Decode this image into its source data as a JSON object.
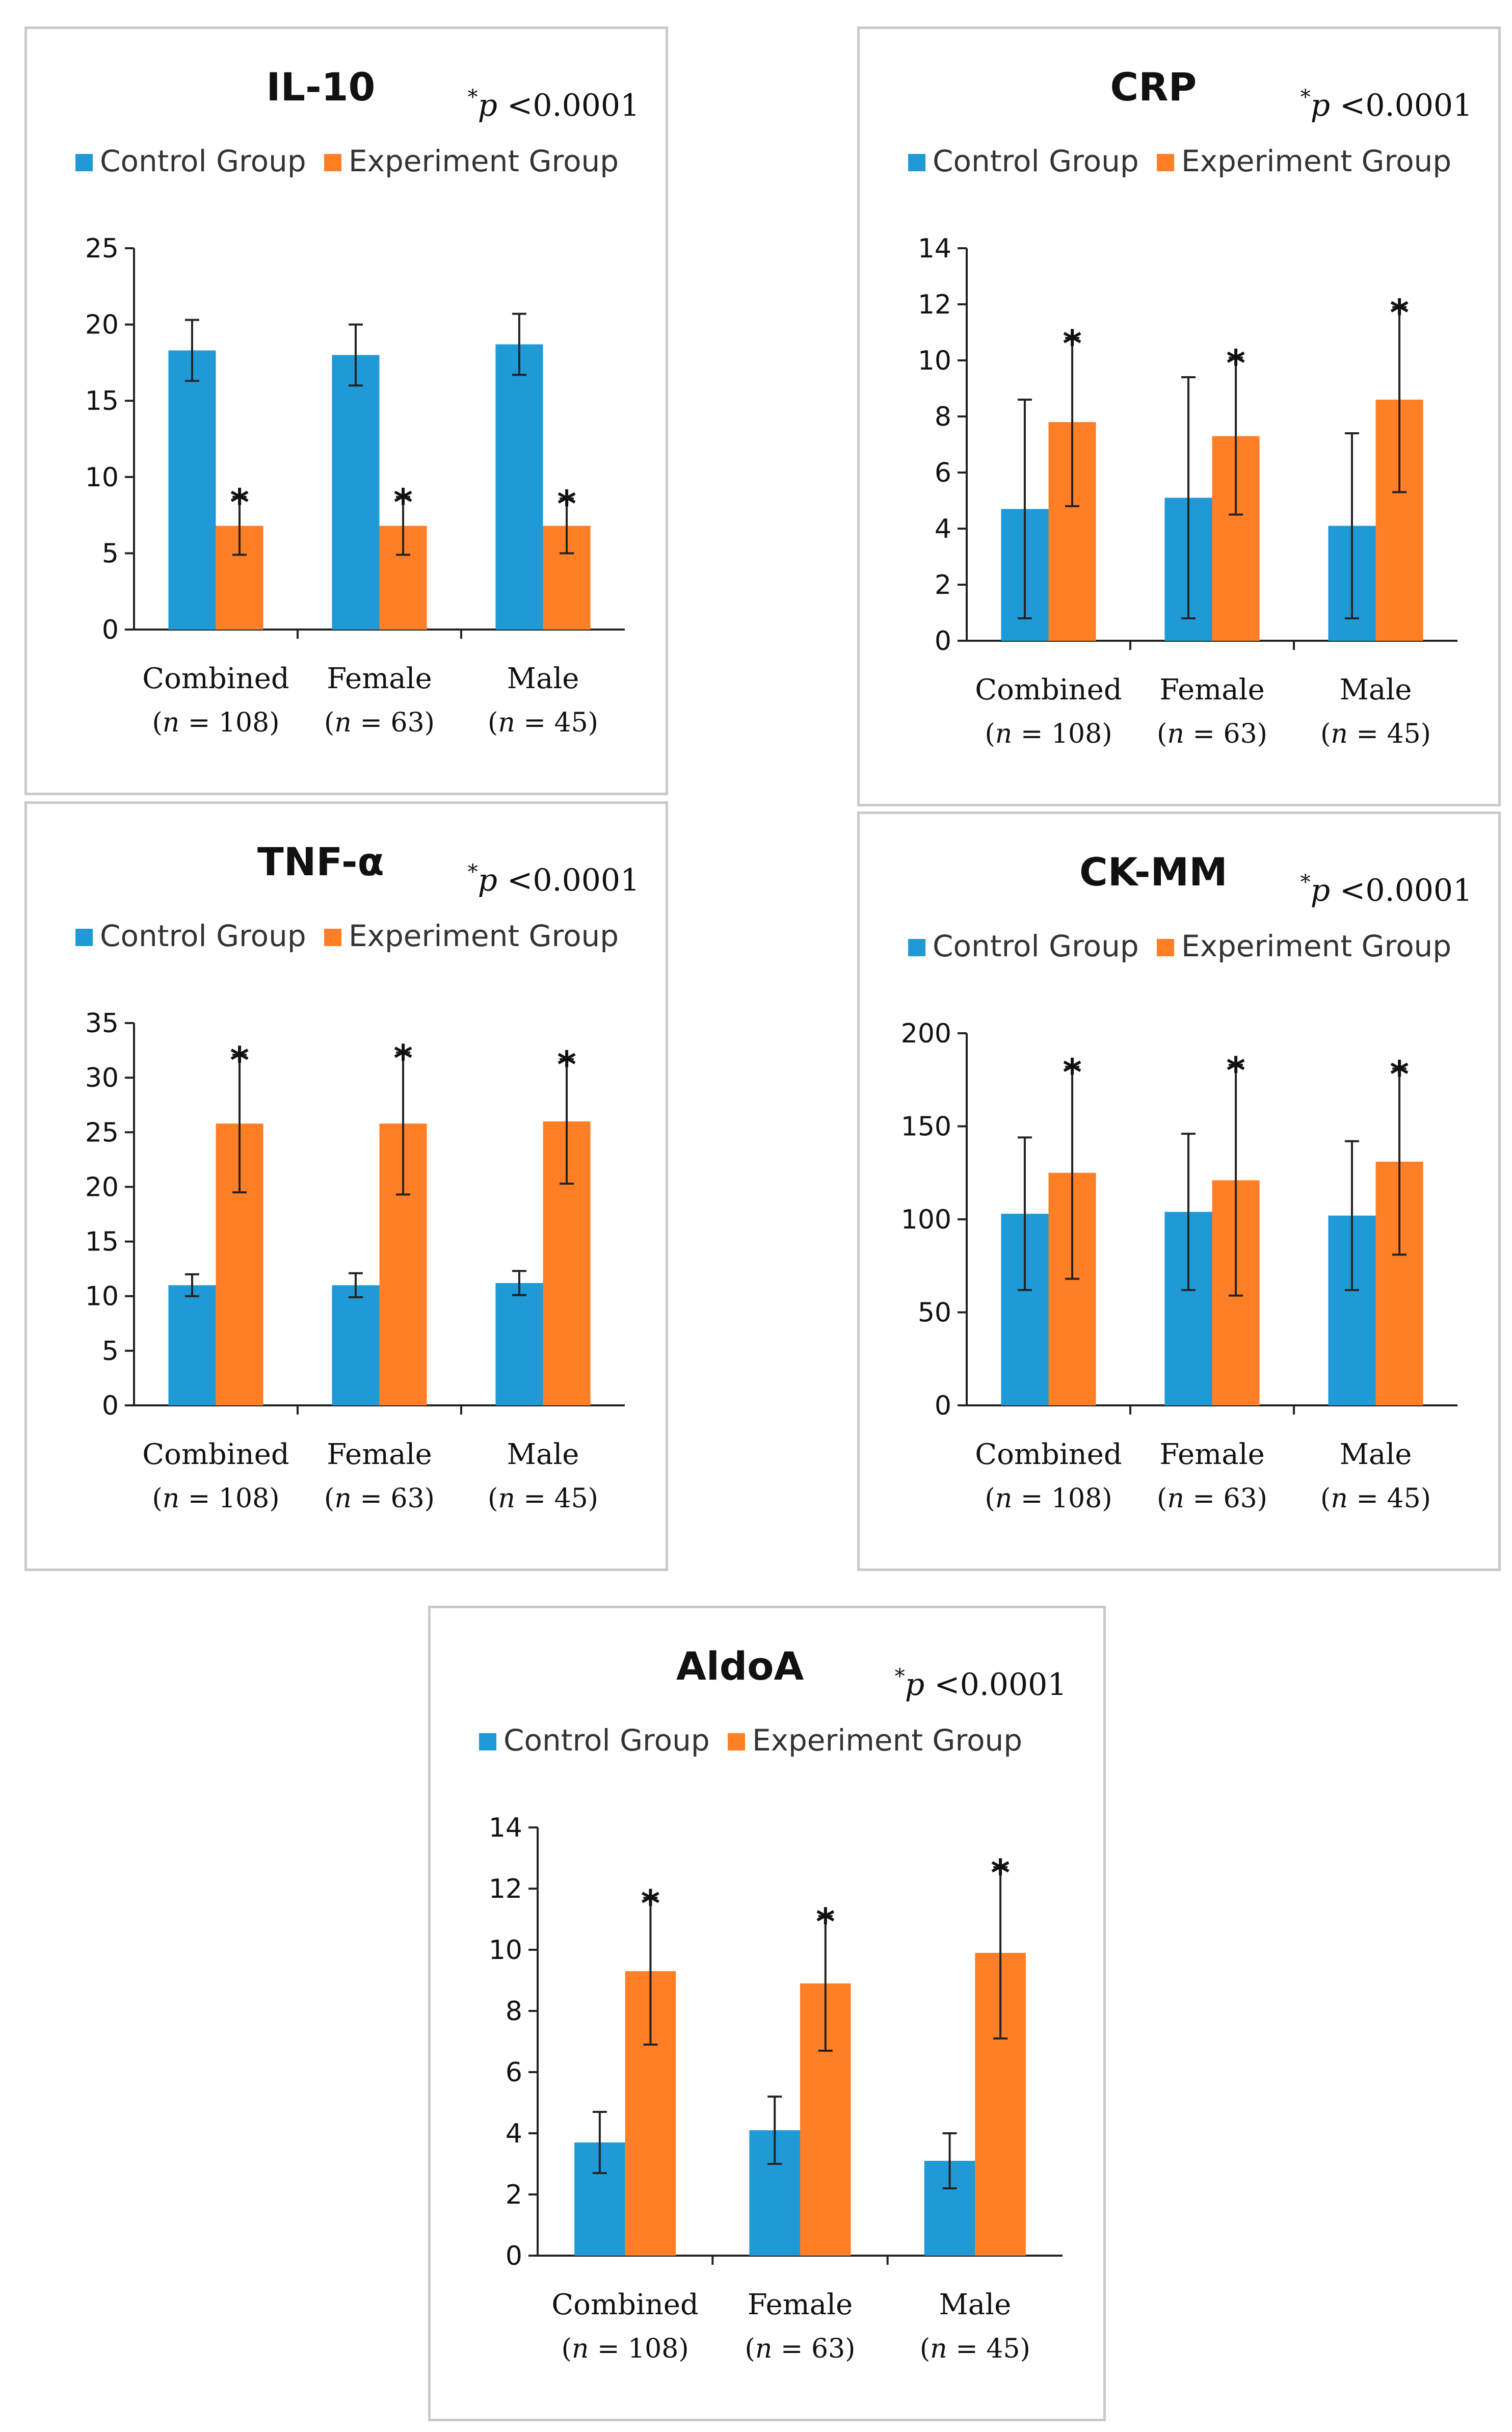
{
  "chart_data": [
    {
      "type": "bar",
      "title": "IL-10",
      "annotation": {
        "star": "*",
        "var": "p",
        "text": " <0.0001"
      },
      "categories": [
        "Combined",
        "Female",
        "Male"
      ],
      "category_n": [
        "(n = 108)",
        "(n = 63)",
        "(n = 45)"
      ],
      "n_values": [
        "108",
        "63",
        "45"
      ],
      "ylim": [
        0,
        25
      ],
      "yticks": [
        0,
        5,
        10,
        15,
        20,
        25
      ],
      "series": [
        {
          "name": "Control Group",
          "color": "#1f9ad6",
          "values": [
            18.3,
            18.0,
            18.7
          ],
          "errors": [
            2.0,
            2.0,
            2.0
          ]
        },
        {
          "name": "Experiment Group",
          "color": "#ff7f27",
          "values": [
            6.8,
            6.8,
            6.8
          ],
          "errors": [
            1.9,
            1.9,
            1.8
          ]
        }
      ],
      "significance": "*"
    },
    {
      "type": "bar",
      "title": "CRP",
      "annotation": {
        "star": "*",
        "var": "p",
        "text": " <0.0001"
      },
      "categories": [
        "Combined",
        "Female",
        "Male"
      ],
      "category_n": [
        "(n = 108)",
        "(n = 63)",
        "(n = 45)"
      ],
      "n_values": [
        "108",
        "63",
        "45"
      ],
      "ylim": [
        0,
        14
      ],
      "yticks": [
        0,
        2,
        4,
        6,
        8,
        10,
        12,
        14
      ],
      "series": [
        {
          "name": "Control Group",
          "color": "#1f9ad6",
          "values": [
            4.7,
            5.1,
            4.1
          ],
          "errors": [
            3.9,
            4.3,
            3.3
          ]
        },
        {
          "name": "Experiment Group",
          "color": "#ff7f27",
          "values": [
            7.8,
            7.3,
            8.6
          ],
          "errors": [
            3.0,
            2.8,
            3.3
          ]
        }
      ],
      "significance": "*"
    },
    {
      "type": "bar",
      "title": "TNF-α",
      "annotation": {
        "star": "*",
        "var": "p",
        "text": " <0.0001"
      },
      "categories": [
        "Combined",
        "Female",
        "Male"
      ],
      "category_n": [
        "(n = 108)",
        "(n = 63)",
        "(n = 45)"
      ],
      "n_values": [
        "108",
        "63",
        "45"
      ],
      "ylim": [
        0,
        35
      ],
      "yticks": [
        0,
        5,
        10,
        15,
        20,
        25,
        30,
        35
      ],
      "series": [
        {
          "name": "Control Group",
          "color": "#1f9ad6",
          "values": [
            11.0,
            11.0,
            11.2
          ],
          "errors": [
            1.0,
            1.1,
            1.1
          ]
        },
        {
          "name": "Experiment Group",
          "color": "#ff7f27",
          "values": [
            25.8,
            25.8,
            26.0
          ],
          "errors": [
            6.3,
            6.5,
            5.7
          ]
        }
      ],
      "significance": "*"
    },
    {
      "type": "bar",
      "title": "CK-MM",
      "annotation": {
        "star": "*",
        "var": "p",
        "text": " <0.0001"
      },
      "categories": [
        "Combined",
        "Female",
        "Male"
      ],
      "category_n": [
        "(n = 108)",
        "(n = 63)",
        "(n = 45)"
      ],
      "n_values": [
        "108",
        "63",
        "45"
      ],
      "ylim": [
        0,
        200
      ],
      "yticks": [
        0,
        50,
        100,
        150,
        200
      ],
      "series": [
        {
          "name": "Control Group",
          "color": "#1f9ad6",
          "values": [
            103,
            104,
            102
          ],
          "errors": [
            41,
            42,
            40
          ]
        },
        {
          "name": "Experiment Group",
          "color": "#ff7f27",
          "values": [
            125,
            121,
            131
          ],
          "errors": [
            57,
            62,
            50
          ]
        }
      ],
      "significance": "*"
    },
    {
      "type": "bar",
      "title": "AldoA",
      "annotation": {
        "star": "*",
        "var": "p",
        "text": " <0.0001"
      },
      "categories": [
        "Combined",
        "Female",
        "Male"
      ],
      "category_n": [
        "(n = 108)",
        "(n = 63)",
        "(n = 45)"
      ],
      "n_values": [
        "108",
        "63",
        "45"
      ],
      "ylim": [
        0,
        14
      ],
      "yticks": [
        0,
        2,
        4,
        6,
        8,
        10,
        12,
        14
      ],
      "series": [
        {
          "name": "Control Group",
          "color": "#1f9ad6",
          "values": [
            3.7,
            4.1,
            3.1
          ],
          "errors": [
            1.0,
            1.1,
            0.9
          ]
        },
        {
          "name": "Experiment Group",
          "color": "#ff7f27",
          "values": [
            9.3,
            8.9,
            9.9
          ],
          "errors": [
            2.4,
            2.2,
            2.8
          ]
        }
      ],
      "significance": "*"
    }
  ]
}
